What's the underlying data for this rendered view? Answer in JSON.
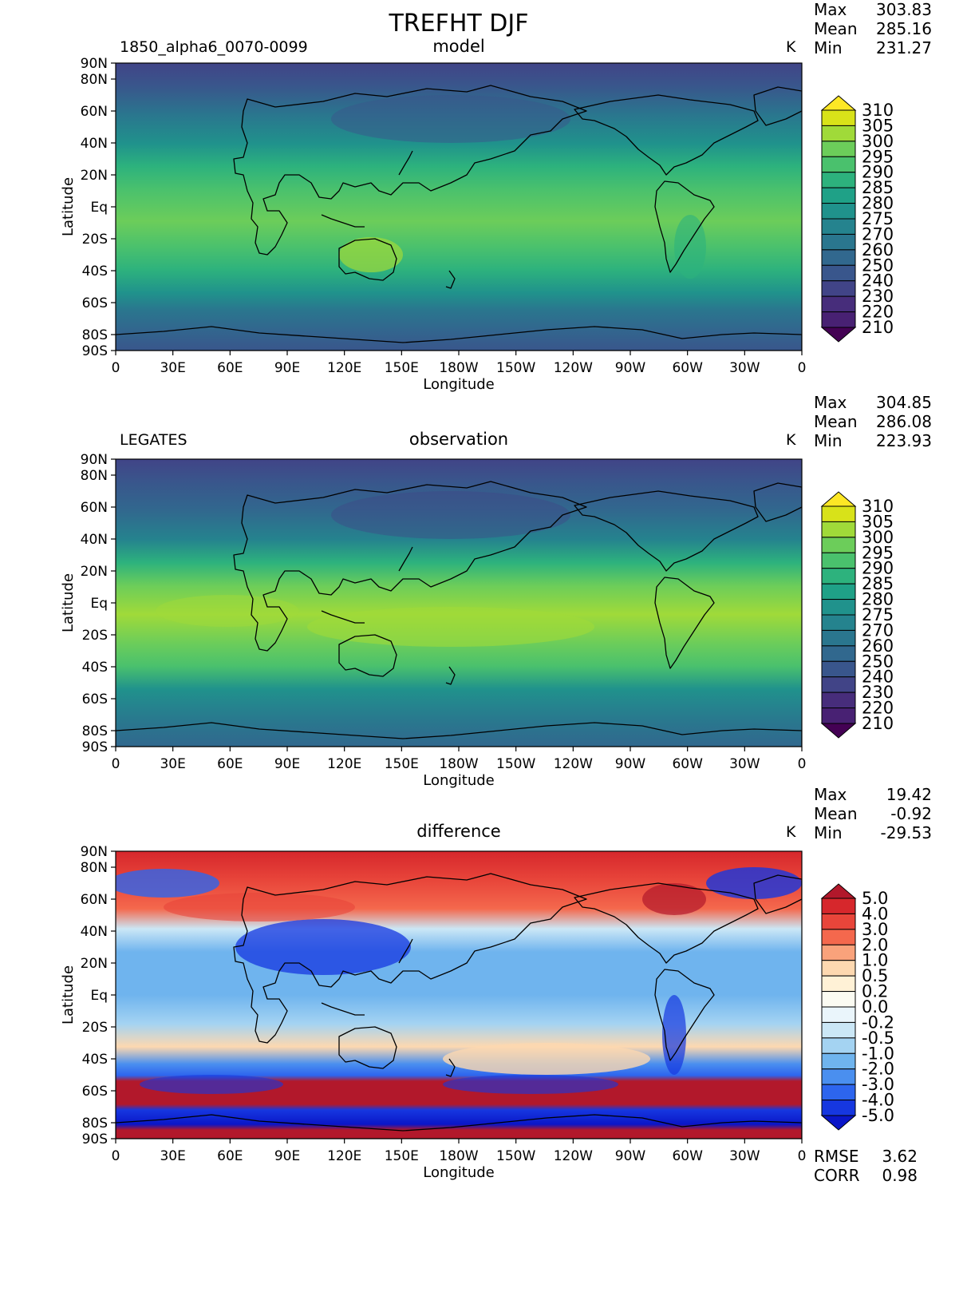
{
  "figure_title": "TREFHT DJF",
  "panels": [
    {
      "case_name": "1850_alpha6_0070-0099",
      "subtitle": "model",
      "units": "K",
      "stats": {
        "Max": "303.83",
        "Mean": "285.16",
        "Min": "231.27"
      },
      "colorbar": "absolute"
    },
    {
      "case_name": "LEGATES",
      "subtitle": "observation",
      "units": "K",
      "stats": {
        "Max": "304.85",
        "Mean": "286.08",
        "Min": "223.93"
      },
      "colorbar": "absolute"
    },
    {
      "case_name": "",
      "subtitle": "difference",
      "units": "K",
      "stats": {
        "Max": "19.42",
        "Mean": "-0.92",
        "Min": "-29.53"
      },
      "colorbar": "difference",
      "metrics": {
        "RMSE": "3.62",
        "CORR": "0.98"
      }
    }
  ],
  "axes": {
    "xlabel": "Longitude",
    "ylabel": "Latitude",
    "lat_ticks": [
      "90N",
      "80N",
      "60N",
      "40N",
      "20N",
      "Eq",
      "20S",
      "40S",
      "60S",
      "80S",
      "90S"
    ],
    "lat_values": [
      90,
      80,
      60,
      40,
      20,
      0,
      -20,
      -40,
      -60,
      -80,
      -90
    ],
    "lon_ticks": [
      "0",
      "30E",
      "60E",
      "90E",
      "120E",
      "150E",
      "180W",
      "150W",
      "120W",
      "90W",
      "60W",
      "30W",
      "0"
    ],
    "lon_values": [
      0,
      30,
      60,
      90,
      120,
      150,
      180,
      210,
      240,
      270,
      300,
      330,
      360
    ]
  },
  "colorbars": {
    "absolute": {
      "levels": [
        "310",
        "305",
        "300",
        "295",
        "290",
        "285",
        "280",
        "275",
        "270",
        "260",
        "250",
        "240",
        "230",
        "220",
        "210"
      ],
      "colors": [
        "#fde725",
        "#d8e219",
        "#a0da39",
        "#6ccd5a",
        "#4ac16d",
        "#2db27d",
        "#1fa187",
        "#20928c",
        "#25838e",
        "#2a768e",
        "#31688e",
        "#39568c",
        "#414487",
        "#472d7b",
        "#482173",
        "#440154"
      ]
    },
    "difference": {
      "levels": [
        "5.0",
        "4.0",
        "3.0",
        "2.0",
        "1.0",
        "0.5",
        "0.2",
        "0.0",
        "-0.2",
        "-0.5",
        "-1.0",
        "-2.0",
        "-3.0",
        "-4.0",
        "-5.0"
      ],
      "colors": [
        "#b2182b",
        "#d6272c",
        "#e8453a",
        "#f4684d",
        "#f9a27b",
        "#fdd8b0",
        "#fff1d6",
        "#fbfbf2",
        "#eaf5fb",
        "#cbe7f6",
        "#a4d3f2",
        "#6fb4ee",
        "#4a8fef",
        "#2d65ee",
        "#1637e0",
        "#0a16c8"
      ]
    }
  },
  "chart_data": {
    "type": "heatmap",
    "title": "TREFHT DJF",
    "variable": "TREFHT",
    "season": "DJF",
    "units": "K",
    "panels": [
      {
        "name": "model",
        "case": "1850_alpha6_0070-0099",
        "max": 303.83,
        "mean": 285.16,
        "min": 231.27
      },
      {
        "name": "observation",
        "case": "LEGATES",
        "max": 304.85,
        "mean": 286.08,
        "min": 223.93
      },
      {
        "name": "difference",
        "max": 19.42,
        "mean": -0.92,
        "min": -29.53,
        "rmse": 3.62,
        "corr": 0.98
      }
    ],
    "xlabel": "Longitude",
    "ylabel": "Latitude",
    "xlim": [
      0,
      360
    ],
    "ylim": [
      -90,
      90
    ],
    "projection": "cylindrical equidistant, centered on 180"
  }
}
